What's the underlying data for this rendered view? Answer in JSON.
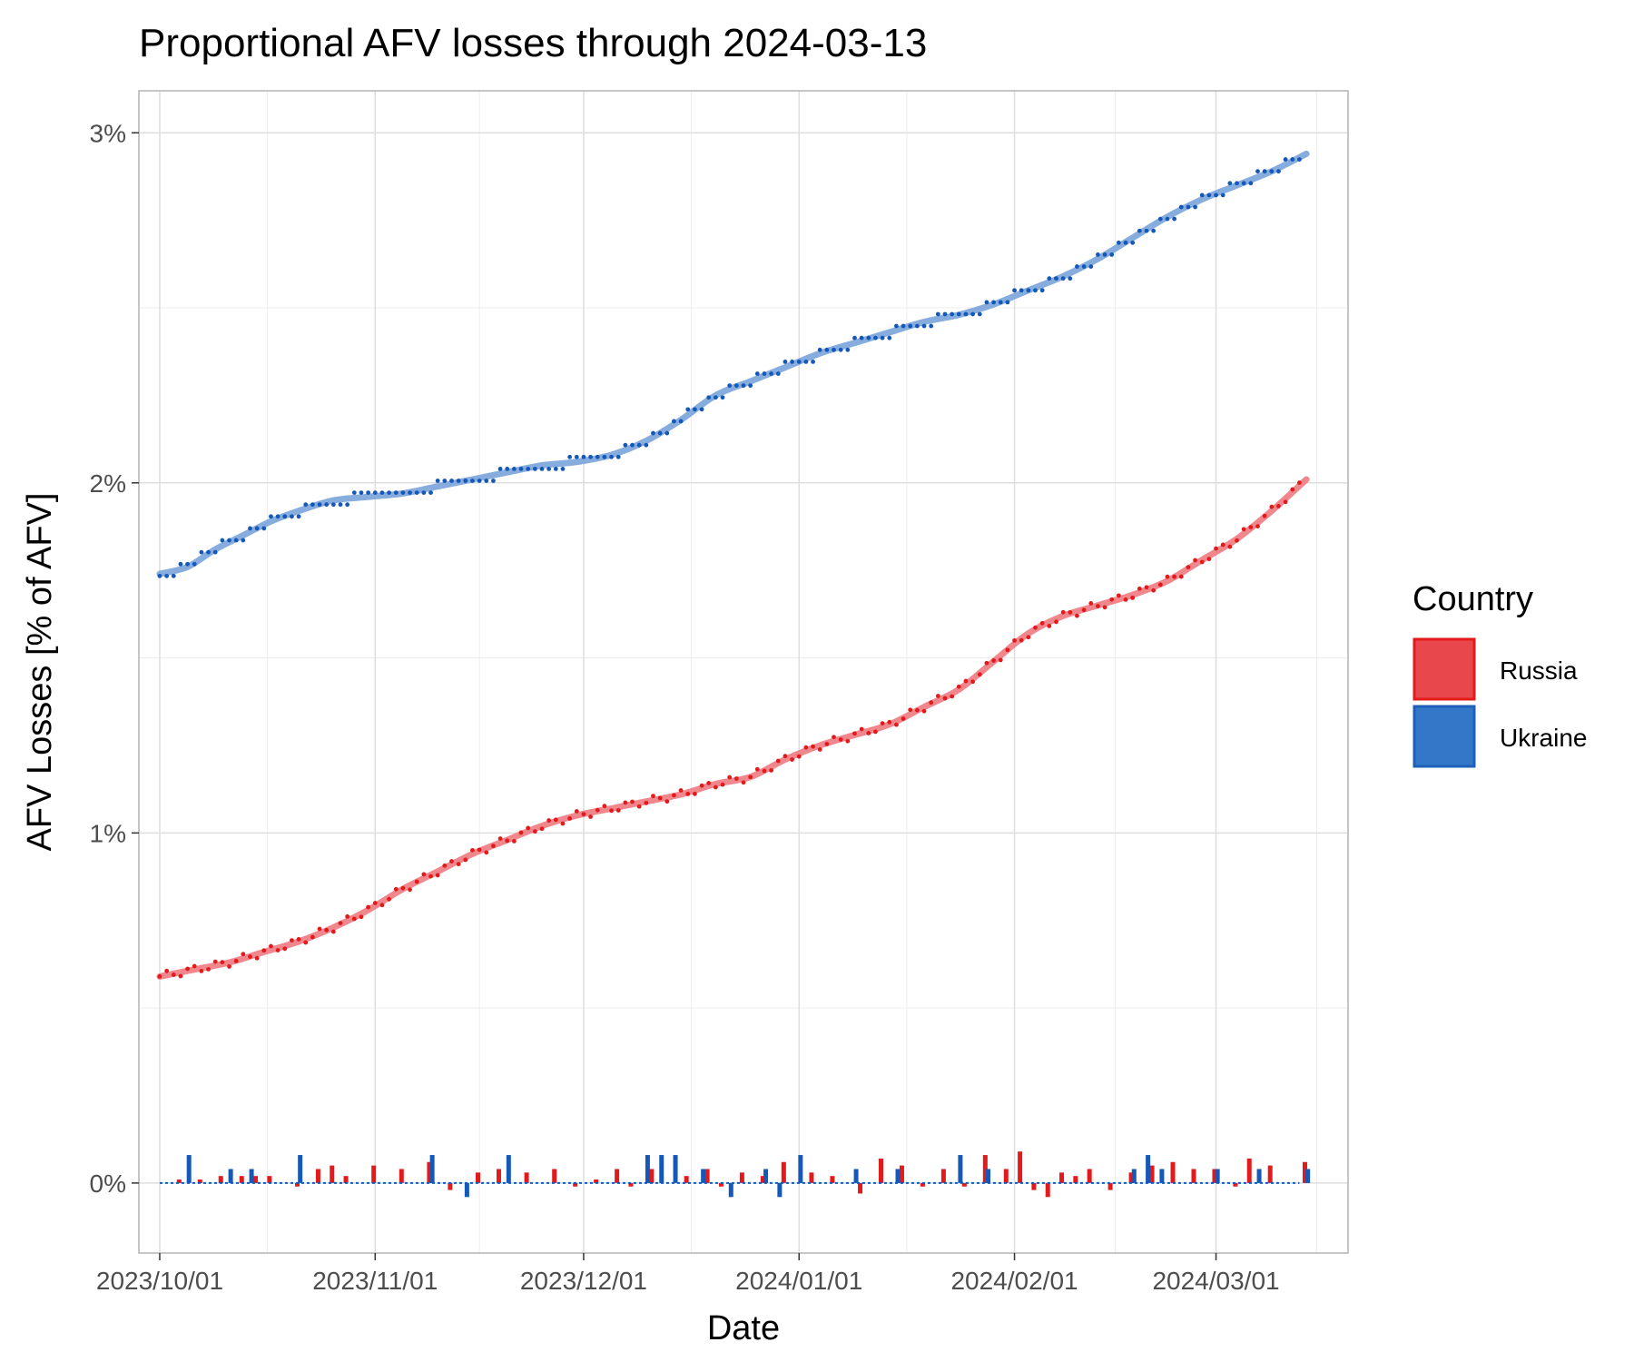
{
  "chart_data": {
    "type": "line",
    "title": "Proportional AFV losses through 2024-03-13",
    "xlabel": "Date",
    "ylabel": "AFV Losses [% of AFV]",
    "x_range": [
      "2023-10-01",
      "2024-03-13"
    ],
    "xlim_days": [
      -3,
      171
    ],
    "ylim": [
      -0.2,
      3.12
    ],
    "x_ticks": [
      {
        "day": 0,
        "label": "2023/10/01"
      },
      {
        "day": 31,
        "label": "2023/11/01"
      },
      {
        "day": 61,
        "label": "2023/12/01"
      },
      {
        "day": 92,
        "label": "2024/01/01"
      },
      {
        "day": 123,
        "label": "2024/02/01"
      },
      {
        "day": 152,
        "label": "2024/03/01"
      }
    ],
    "y_ticks": [
      {
        "value": 0,
        "label": "0%"
      },
      {
        "value": 1,
        "label": "1%"
      },
      {
        "value": 2,
        "label": "2%"
      },
      {
        "value": 3,
        "label": "3%"
      }
    ],
    "legend": {
      "title": "Country",
      "position": "right",
      "entries": [
        {
          "name": "Russia",
          "color": "#e8474c",
          "border": "#e31a1c"
        },
        {
          "name": "Ukraine",
          "color": "#3377c9",
          "border": "#1f5fb8"
        }
      ]
    },
    "series": [
      {
        "name": "Russia",
        "point_color": "#e31a1c",
        "line_color": "#ee8187",
        "cumulative_knots": [
          [
            0,
            0.59
          ],
          [
            5,
            0.61
          ],
          [
            10,
            0.63
          ],
          [
            15,
            0.66
          ],
          [
            20,
            0.69
          ],
          [
            25,
            0.73
          ],
          [
            30,
            0.78
          ],
          [
            35,
            0.84
          ],
          [
            40,
            0.89
          ],
          [
            45,
            0.94
          ],
          [
            50,
            0.98
          ],
          [
            55,
            1.02
          ],
          [
            60,
            1.05
          ],
          [
            65,
            1.07
          ],
          [
            70,
            1.09
          ],
          [
            75,
            1.11
          ],
          [
            80,
            1.14
          ],
          [
            85,
            1.16
          ],
          [
            90,
            1.21
          ],
          [
            95,
            1.25
          ],
          [
            100,
            1.28
          ],
          [
            105,
            1.31
          ],
          [
            110,
            1.36
          ],
          [
            115,
            1.41
          ],
          [
            120,
            1.49
          ],
          [
            125,
            1.57
          ],
          [
            130,
            1.62
          ],
          [
            135,
            1.65
          ],
          [
            140,
            1.68
          ],
          [
            145,
            1.72
          ],
          [
            150,
            1.78
          ],
          [
            155,
            1.84
          ],
          [
            160,
            1.92
          ],
          [
            165,
            2.01
          ]
        ],
        "daily_change_days": [
          3,
          6,
          9,
          12,
          14,
          16,
          20,
          23,
          25,
          27,
          31,
          35,
          39,
          42,
          46,
          49,
          53,
          57,
          60,
          63,
          66,
          68,
          71,
          76,
          79,
          81,
          84,
          87,
          90,
          94,
          97,
          101,
          104,
          107,
          110,
          113,
          116,
          119,
          122,
          124,
          126,
          128,
          130,
          132,
          134,
          137,
          140,
          143,
          146,
          149,
          152,
          155,
          157,
          160,
          165
        ],
        "daily_change_values": [
          0.01,
          0.01,
          0.02,
          0.02,
          0.02,
          0.02,
          -0.01,
          0.04,
          0.05,
          0.02,
          0.05,
          0.04,
          0.06,
          -0.02,
          0.03,
          0.04,
          0.03,
          0.04,
          -0.01,
          0.01,
          0.04,
          -0.01,
          0.04,
          0.02,
          0.04,
          -0.01,
          0.03,
          0.02,
          0.06,
          0.03,
          0.02,
          -0.03,
          0.07,
          0.05,
          -0.01,
          0.04,
          -0.01,
          0.08,
          0.04,
          0.09,
          -0.02,
          -0.04,
          0.03,
          0.02,
          0.04,
          -0.02,
          0.03,
          0.05,
          0.06,
          0.04,
          0.04,
          -0.01,
          0.07,
          0.05,
          0.06
        ]
      },
      {
        "name": "Ukraine",
        "point_color": "#1558b8",
        "line_color": "#7fa9dc",
        "cumulative_knots": [
          [
            0,
            1.74
          ],
          [
            4,
            1.76
          ],
          [
            8,
            1.81
          ],
          [
            12,
            1.85
          ],
          [
            16,
            1.89
          ],
          [
            20,
            1.92
          ],
          [
            25,
            1.95
          ],
          [
            30,
            1.96
          ],
          [
            35,
            1.97
          ],
          [
            40,
            1.99
          ],
          [
            45,
            2.01
          ],
          [
            50,
            2.03
          ],
          [
            55,
            2.05
          ],
          [
            60,
            2.06
          ],
          [
            65,
            2.08
          ],
          [
            70,
            2.12
          ],
          [
            75,
            2.18
          ],
          [
            80,
            2.25
          ],
          [
            85,
            2.29
          ],
          [
            90,
            2.33
          ],
          [
            95,
            2.37
          ],
          [
            100,
            2.4
          ],
          [
            105,
            2.43
          ],
          [
            110,
            2.46
          ],
          [
            115,
            2.48
          ],
          [
            120,
            2.51
          ],
          [
            125,
            2.55
          ],
          [
            130,
            2.59
          ],
          [
            135,
            2.64
          ],
          [
            140,
            2.7
          ],
          [
            145,
            2.76
          ],
          [
            150,
            2.81
          ],
          [
            155,
            2.85
          ],
          [
            160,
            2.89
          ],
          [
            165,
            2.94
          ]
        ],
        "daily_change_days": [
          4,
          10,
          13,
          20,
          39,
          44,
          50,
          70,
          72,
          74,
          78,
          82,
          87,
          89,
          92,
          100,
          106,
          115,
          119,
          140,
          142,
          144,
          152,
          158,
          165
        ],
        "daily_change_values": [
          0.08,
          0.04,
          0.04,
          0.08,
          0.08,
          -0.04,
          0.08,
          0.08,
          0.08,
          0.08,
          0.04,
          -0.04,
          0.04,
          -0.04,
          0.08,
          0.04,
          0.04,
          0.08,
          0.04,
          0.04,
          0.08,
          0.04,
          0.04,
          0.04,
          0.04
        ]
      }
    ]
  }
}
